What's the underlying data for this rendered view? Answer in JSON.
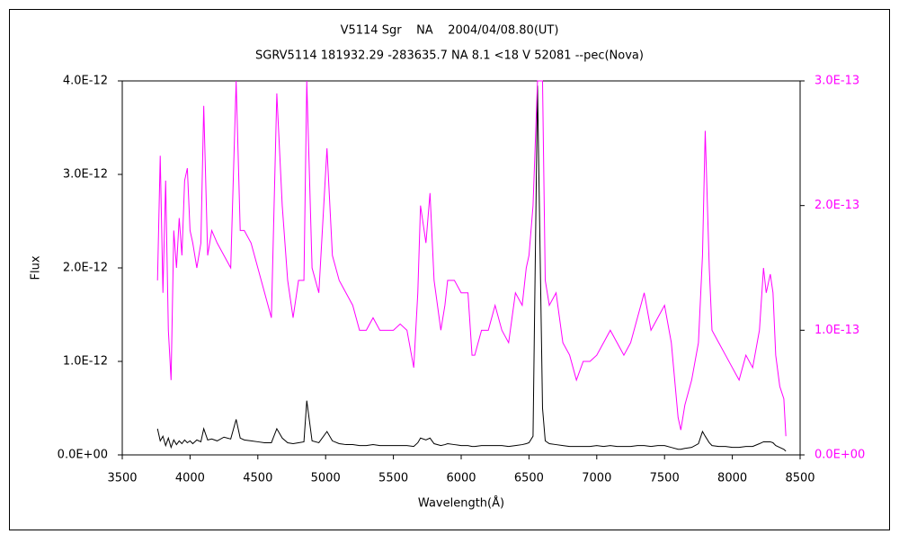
{
  "chart_data": {
    "type": "line",
    "title": "V5114 Sgr    NA    2004/04/08.80(UT)",
    "subtitle": "SGRV5114 181932.29 -283635.7 NA 8.1 <18 V 52081 --pec(Nova)",
    "x_label": "Wavelength(Å)",
    "y_label": "Flux",
    "xlim": [
      3500,
      8500
    ],
    "xticks": [
      3500,
      4000,
      4500,
      5000,
      5500,
      6000,
      6500,
      7000,
      7500,
      8000,
      8500
    ],
    "ylim": [
      0,
      4e-12
    ],
    "yticks": [
      {
        "value": 0,
        "label": "0.0E+00"
      },
      {
        "value": 1e-12,
        "label": "1.0E-12"
      },
      {
        "value": 2e-12,
        "label": "2.0E-12"
      },
      {
        "value": 3e-12,
        "label": "3.0E-12"
      },
      {
        "value": 4e-12,
        "label": "4.0E-12"
      }
    ],
    "y2lim": [
      0,
      3e-13
    ],
    "y2ticks": [
      {
        "value": 0,
        "label": "0.0E+00"
      },
      {
        "value": 1e-13,
        "label": "1.0E-13"
      },
      {
        "value": 2e-13,
        "label": "2.0E-13"
      },
      {
        "value": 3e-13,
        "label": "3.0E-13"
      }
    ],
    "x": [
      3760,
      3780,
      3800,
      3820,
      3840,
      3860,
      3880,
      3900,
      3920,
      3940,
      3960,
      3980,
      4000,
      4020,
      4050,
      4080,
      4101,
      4130,
      4160,
      4200,
      4250,
      4300,
      4340,
      4370,
      4400,
      4450,
      4500,
      4550,
      4600,
      4640,
      4680,
      4720,
      4760,
      4800,
      4840,
      4861,
      4900,
      4950,
      5010,
      5050,
      5100,
      5150,
      5200,
      5250,
      5300,
      5350,
      5400,
      5450,
      5500,
      5550,
      5600,
      5650,
      5680,
      5700,
      5740,
      5770,
      5800,
      5850,
      5880,
      5900,
      5950,
      6000,
      6050,
      6080,
      6100,
      6150,
      6200,
      6250,
      6300,
      6350,
      6400,
      6450,
      6480,
      6500,
      6530,
      6563,
      6600,
      6620,
      6650,
      6700,
      6750,
      6800,
      6850,
      6900,
      6950,
      7000,
      7050,
      7100,
      7150,
      7200,
      7250,
      7300,
      7350,
      7400,
      7450,
      7500,
      7550,
      7600,
      7620,
      7650,
      7700,
      7750,
      7780,
      7800,
      7830,
      7850,
      7900,
      7950,
      8000,
      8050,
      8100,
      8150,
      8200,
      8230,
      8250,
      8280,
      8300,
      8320,
      8350,
      8380,
      8395
    ],
    "series": [
      {
        "color": "#000000",
        "axis": "y",
        "values": [
          2.8e-13,
          1.5e-13,
          2e-13,
          1e-13,
          1.8e-13,
          8e-14,
          1.6e-13,
          1.1e-13,
          1.5e-13,
          1.2e-13,
          1.6e-13,
          1.3e-13,
          1.5e-13,
          1.2e-13,
          1.6e-13,
          1.4e-13,
          2.8e-13,
          1.6e-13,
          1.7e-13,
          1.5e-13,
          1.9e-13,
          1.7e-13,
          3.8e-13,
          1.8e-13,
          1.6e-13,
          1.5e-13,
          1.4e-13,
          1.3e-13,
          1.3e-13,
          2.8e-13,
          1.8e-13,
          1.3e-13,
          1.2e-13,
          1.3e-13,
          1.4e-13,
          5.8e-13,
          1.5e-13,
          1.3e-13,
          2.5e-13,
          1.5e-13,
          1.2e-13,
          1.1e-13,
          1.1e-13,
          1e-13,
          1e-13,
          1.1e-13,
          1e-13,
          1e-13,
          1e-13,
          1e-13,
          1e-13,
          9e-14,
          1.3e-13,
          1.8e-13,
          1.6e-13,
          1.8e-13,
          1.2e-13,
          1e-13,
          1.1e-13,
          1.2e-13,
          1.1e-13,
          1e-13,
          1e-13,
          9e-14,
          9e-14,
          1e-13,
          1e-13,
          1e-13,
          1e-13,
          9e-14,
          1e-13,
          1.1e-13,
          1.2e-13,
          1.3e-13,
          2e-13,
          3.95e-12,
          5e-13,
          1.5e-13,
          1.2e-13,
          1.1e-13,
          1e-13,
          9e-14,
          9e-14,
          9e-14,
          9e-14,
          1e-13,
          9e-14,
          1e-13,
          9e-14,
          9e-14,
          9e-14,
          1e-13,
          1e-13,
          9e-14,
          1e-13,
          1e-13,
          8e-14,
          6e-14,
          6e-14,
          7e-14,
          8e-14,
          1.2e-13,
          2.5e-13,
          2e-13,
          1.3e-13,
          1e-13,
          9e-14,
          9e-14,
          8e-14,
          8e-14,
          9e-14,
          9e-14,
          1.2e-13,
          1.4e-13,
          1.4e-13,
          1.4e-13,
          1.3e-13,
          1e-13,
          8e-14,
          6e-14,
          4e-14
        ]
      },
      {
        "color": "#ff00ff",
        "axis": "y2",
        "values": [
          1.4e-13,
          2.4e-13,
          1.3e-13,
          2.2e-13,
          1e-13,
          6e-14,
          1.8e-13,
          1.5e-13,
          1.9e-13,
          1.6e-13,
          2.2e-13,
          2.3e-13,
          1.8e-13,
          1.7e-13,
          1.5e-13,
          1.7e-13,
          2.8e-13,
          1.6e-13,
          1.8e-13,
          1.7e-13,
          1.6e-13,
          1.5e-13,
          3e-13,
          1.8e-13,
          1.8e-13,
          1.7e-13,
          1.5e-13,
          1.3e-13,
          1.1e-13,
          2.9e-13,
          2e-13,
          1.4e-13,
          1.1e-13,
          1.4e-13,
          1.4e-13,
          3e-13,
          1.5e-13,
          1.3e-13,
          2.46e-13,
          1.6e-13,
          1.4e-13,
          1.3e-13,
          1.2e-13,
          1e-13,
          1e-13,
          1.1e-13,
          1e-13,
          1e-13,
          1e-13,
          1.05e-13,
          1e-13,
          7e-14,
          1.3e-13,
          2e-13,
          1.7e-13,
          2.1e-13,
          1.4e-13,
          1e-13,
          1.2e-13,
          1.4e-13,
          1.4e-13,
          1.3e-13,
          1.3e-13,
          8e-14,
          8e-14,
          1e-13,
          1e-13,
          1.2e-13,
          1e-13,
          9e-14,
          1.3e-13,
          1.2e-13,
          1.5e-13,
          1.6e-13,
          2e-13,
          3e-13,
          3e-13,
          1.4e-13,
          1.2e-13,
          1.3e-13,
          9e-14,
          8e-14,
          6e-14,
          7.5e-14,
          7.5e-14,
          8e-14,
          9e-14,
          1e-13,
          9e-14,
          8e-14,
          9e-14,
          1.1e-13,
          1.3e-13,
          1e-13,
          1.1e-13,
          1.2e-13,
          9e-14,
          3e-14,
          2e-14,
          4e-14,
          6e-14,
          9e-14,
          1.6e-13,
          2.6e-13,
          1.5e-13,
          1e-13,
          9e-14,
          8e-14,
          7e-14,
          6e-14,
          8e-14,
          7e-14,
          1e-13,
          1.5e-13,
          1.3e-13,
          1.45e-13,
          1.3e-13,
          8e-14,
          5.5e-14,
          4.5e-14,
          1.5e-14
        ]
      }
    ]
  }
}
